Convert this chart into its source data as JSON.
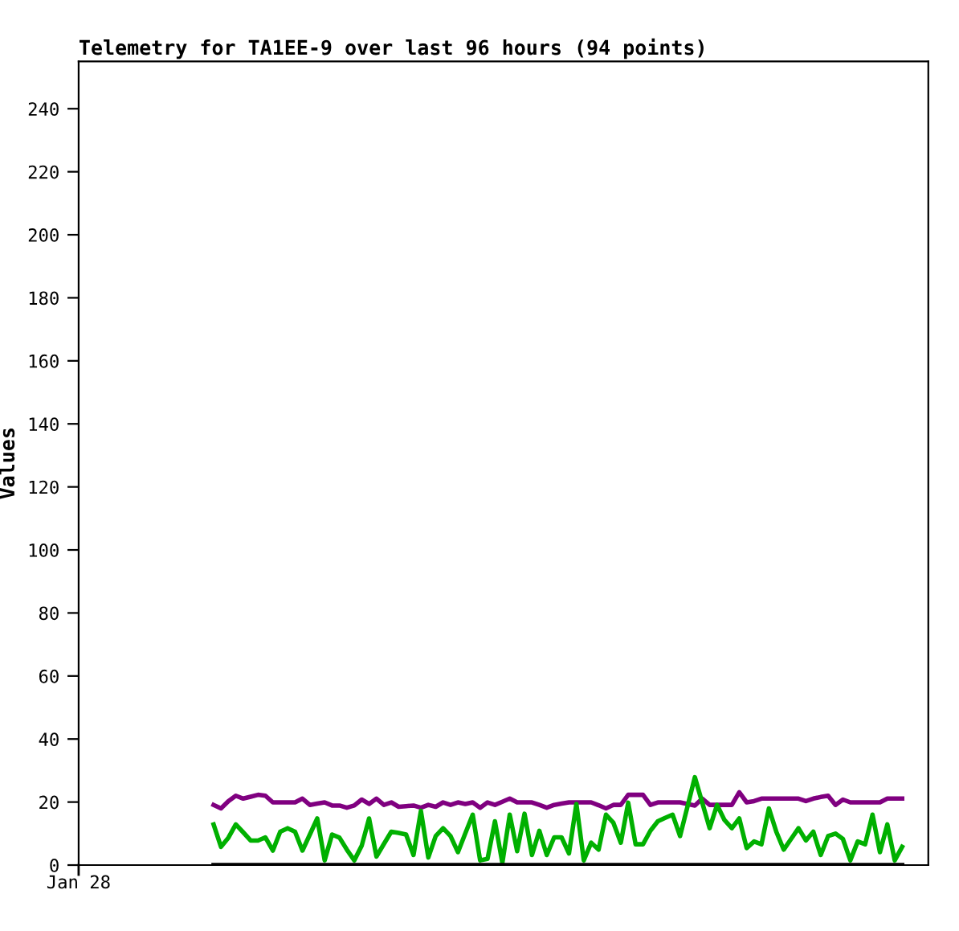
{
  "chart_data": {
    "type": "line",
    "title": "Telemetry for TA1EE-9 over last 96 hours (94 points)",
    "ylabel": "Values",
    "annotations": [
      "Jan 28"
    ],
    "categories": [
      null,
      null,
      null,
      null,
      null,
      null,
      null,
      null,
      null,
      null,
      null,
      null,
      null,
      null,
      null,
      null,
      null,
      null,
      null,
      null,
      null,
      null,
      null,
      null,
      null,
      null,
      null,
      null,
      null,
      null,
      null,
      null,
      null,
      null,
      null,
      null,
      null,
      null,
      null,
      null,
      null,
      null,
      null,
      null,
      null,
      null,
      null,
      null,
      null,
      null,
      null,
      null,
      null,
      null,
      null,
      null,
      null,
      null,
      null,
      null,
      null,
      null,
      null,
      null,
      null,
      null,
      null,
      null,
      null,
      null,
      null,
      null,
      null,
      null,
      null,
      null,
      null,
      null,
      null,
      null,
      null,
      null,
      null,
      null,
      null,
      null,
      null,
      null,
      null,
      null,
      null,
      null,
      null,
      null
    ],
    "ylim": [
      0,
      255
    ],
    "yticks": [
      0,
      20,
      40,
      60,
      80,
      100,
      120,
      140,
      160,
      180,
      200,
      220,
      240
    ],
    "grid": false,
    "marker": "none",
    "line_style": "solid",
    "series": [
      {
        "color": "#800080",
        "values": [
          19.1,
          18.0,
          20.3,
          22.0,
          21.1,
          21.7,
          22.3,
          22.0,
          19.9,
          19.9,
          19.9,
          19.9,
          21.1,
          19.1,
          19.5,
          19.9,
          18.9,
          18.9,
          18.2,
          18.9,
          20.8,
          19.4,
          21.1,
          19.1,
          19.9,
          18.5,
          18.7,
          18.9,
          18.2,
          19.1,
          18.5,
          19.9,
          19.1,
          19.9,
          19.4,
          19.9,
          18.2,
          19.9,
          19.1,
          20.1,
          21.1,
          19.9,
          19.9,
          19.9,
          19.1,
          18.2,
          19.1,
          19.5,
          19.9,
          19.9,
          19.9,
          19.9,
          19.0,
          18.0,
          19.1,
          19.1,
          22.3,
          22.3,
          22.3,
          19.1,
          19.9,
          19.9,
          19.9,
          19.9,
          19.4,
          18.9,
          21.1,
          19.1,
          19.1,
          19.1,
          19.1,
          23.1,
          19.9,
          20.3,
          21.1,
          21.1,
          21.1,
          21.1,
          21.1,
          21.1,
          20.3,
          21.1,
          21.6,
          22.0,
          19.1,
          20.8,
          19.9,
          19.9,
          19.9,
          19.9,
          19.9,
          21.1,
          21.1,
          21.1
        ]
      },
      {
        "color": "#00b000",
        "values": [
          12.9,
          5.8,
          8.7,
          12.9,
          10.4,
          7.8,
          7.8,
          8.8,
          4.6,
          10.6,
          11.7,
          10.6,
          4.6,
          9.7,
          14.8,
          1.5,
          9.7,
          8.7,
          4.9,
          1.5,
          6.1,
          14.8,
          2.7,
          6.7,
          10.6,
          10.2,
          9.7,
          3.2,
          17.2,
          2.4,
          9.2,
          11.7,
          9.2,
          4.1,
          10.1,
          16.0,
          1.5,
          2.0,
          13.9,
          0.7,
          16.0,
          4.4,
          16.3,
          3.2,
          10.9,
          3.2,
          8.8,
          8.8,
          3.7,
          19.4,
          1.5,
          7.1,
          4.9,
          16.0,
          13.4,
          7.1,
          19.8,
          6.6,
          6.6,
          10.9,
          13.9,
          15.0,
          16.0,
          9.2,
          18.5,
          27.9,
          19.8,
          11.7,
          19.1,
          14.3,
          11.7,
          14.8,
          5.4,
          7.5,
          6.6,
          18.0,
          10.6,
          4.9,
          8.3,
          11.7,
          7.8,
          10.6,
          3.2,
          9.2,
          10.0,
          8.3,
          1.5,
          7.5,
          6.6,
          16.0,
          4.1,
          12.9,
          1.5,
          5.8
        ]
      },
      {
        "color": "#000000",
        "values": [
          0,
          0,
          0,
          0,
          0,
          0,
          0,
          0,
          0,
          0,
          0,
          0,
          0,
          0,
          0,
          0,
          0,
          0,
          0,
          0,
          0,
          0,
          0,
          0,
          0,
          0,
          0,
          0,
          0,
          0,
          0,
          0,
          0,
          0,
          0,
          0,
          0,
          0,
          0,
          0,
          0,
          0,
          0,
          0,
          0,
          0,
          0,
          0,
          0,
          0,
          0,
          0,
          0,
          0,
          0,
          0,
          0,
          0,
          0,
          0,
          0,
          0,
          0,
          0,
          0,
          0,
          0,
          0,
          0,
          0,
          0,
          0,
          0,
          0,
          0,
          0,
          0,
          0,
          0,
          0,
          0,
          0,
          0,
          0,
          0,
          0,
          0,
          0,
          0,
          0,
          0,
          0,
          0,
          0
        ]
      }
    ]
  }
}
